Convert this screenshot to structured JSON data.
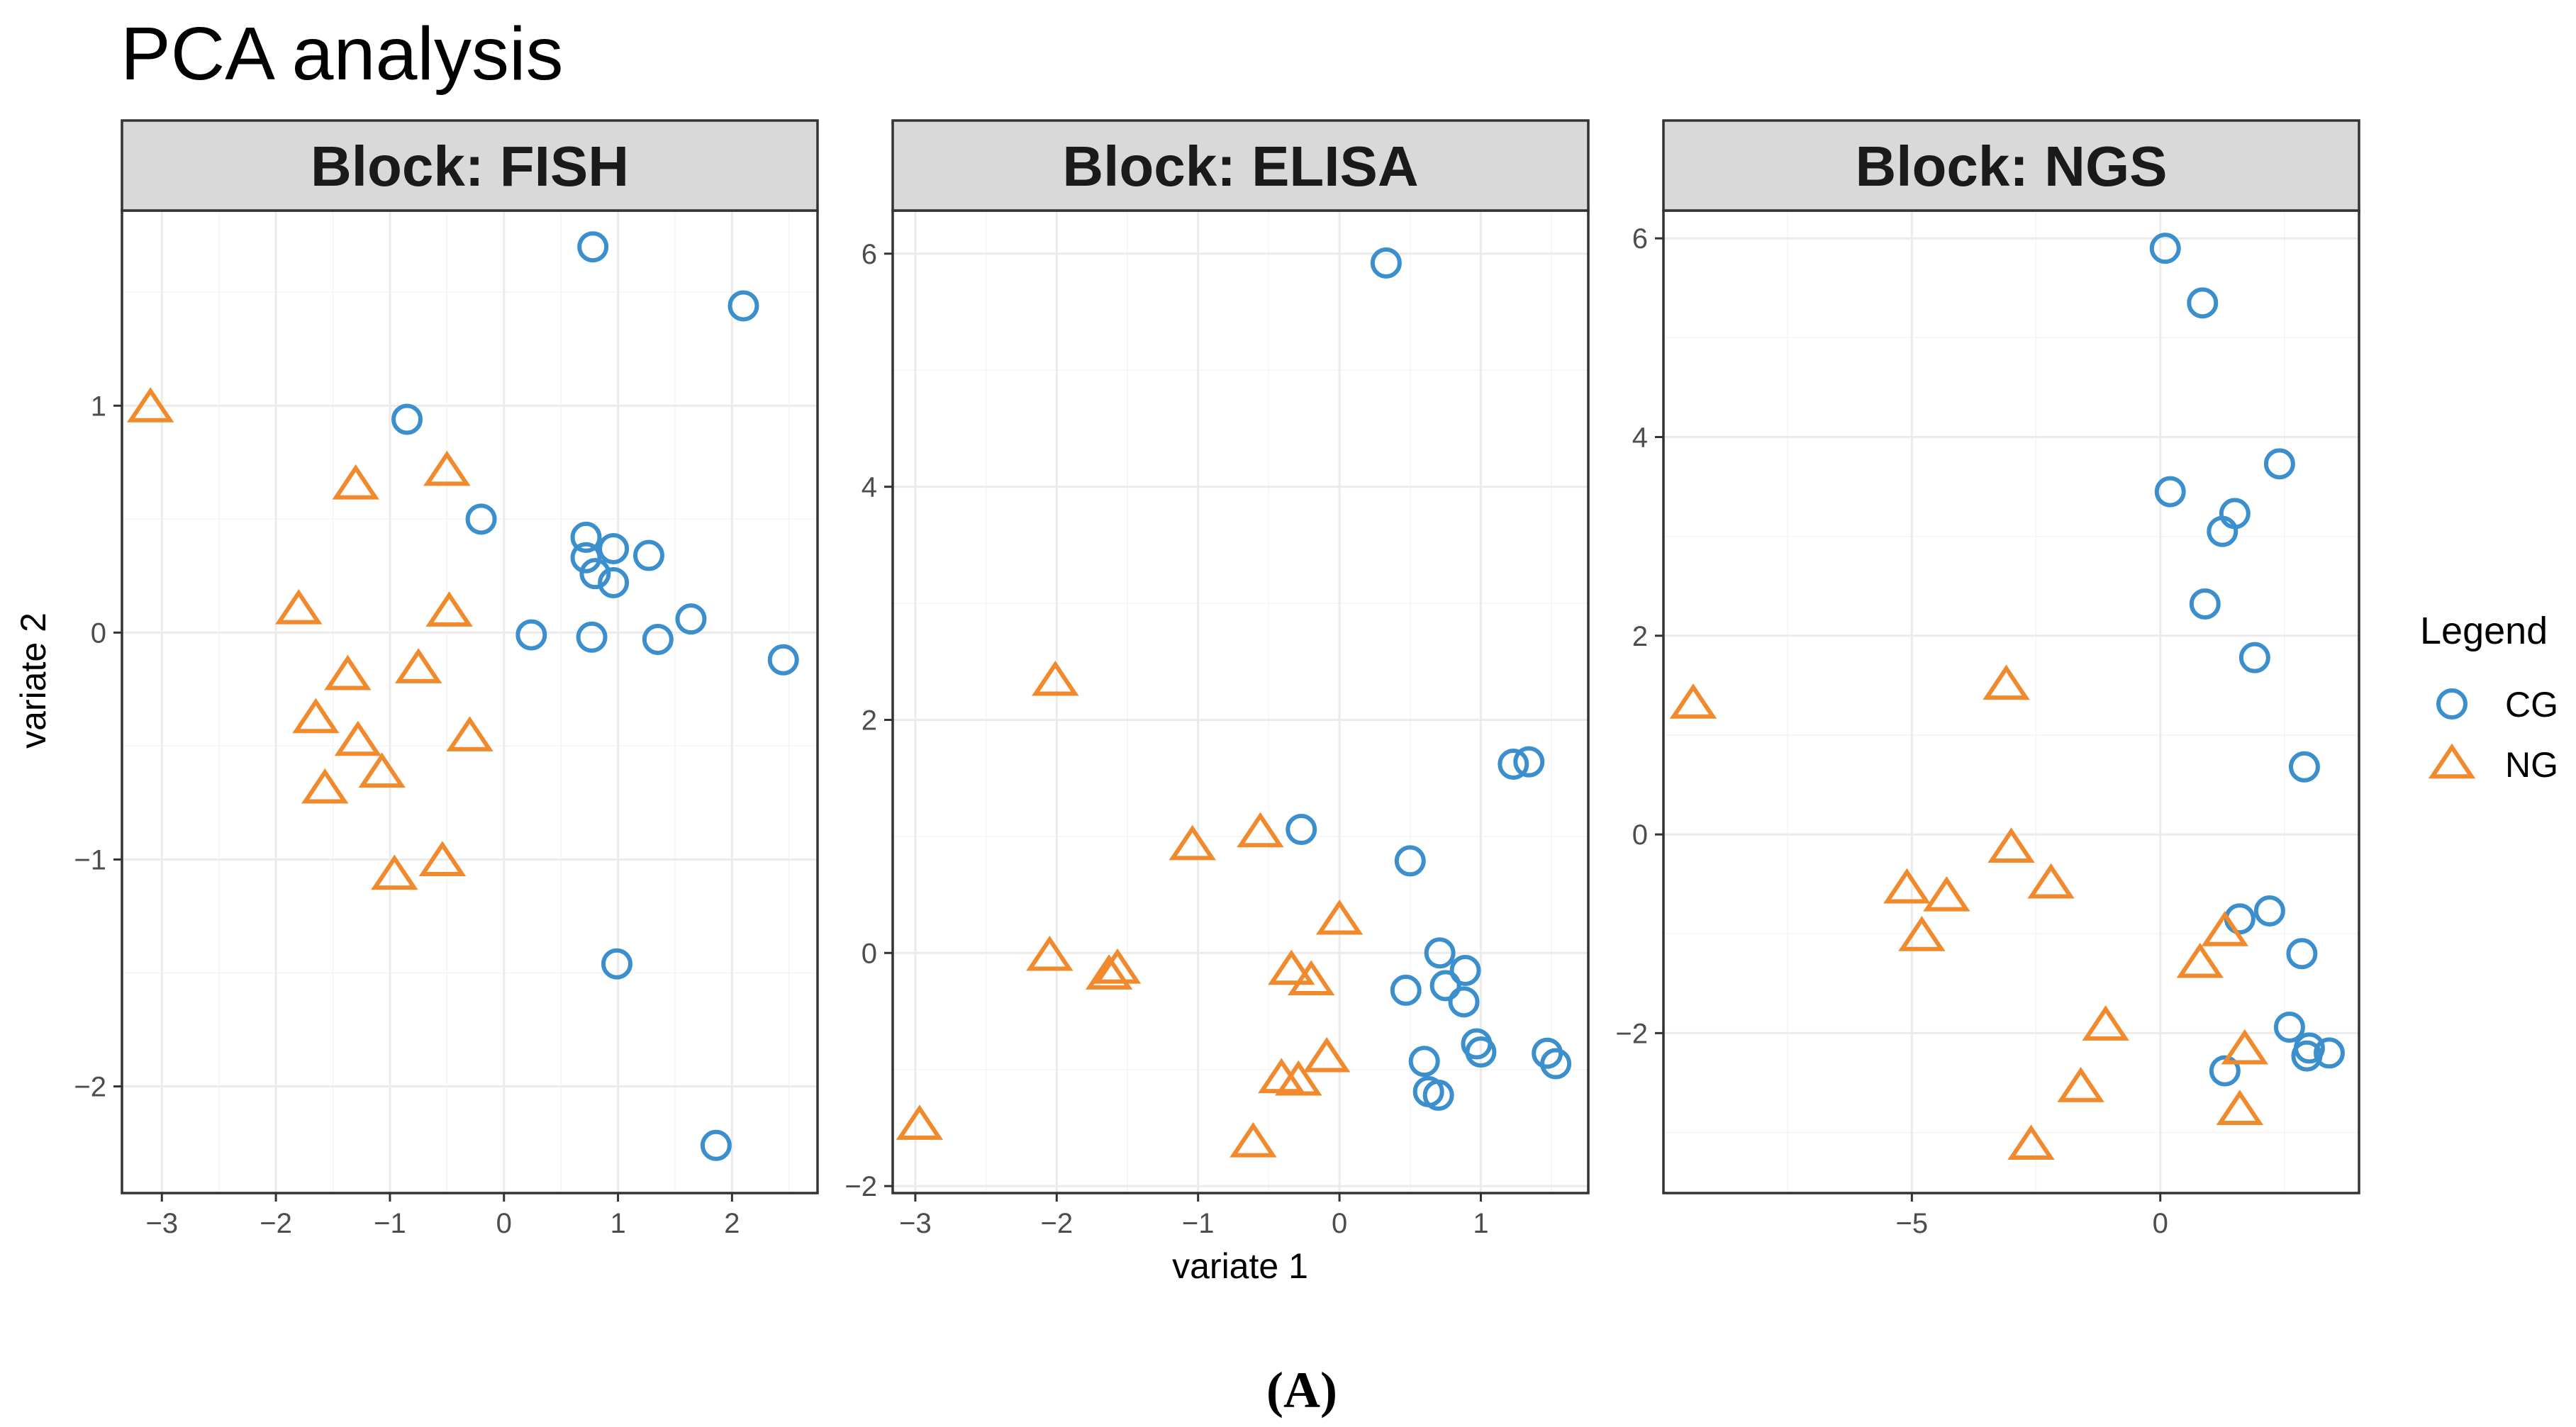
{
  "figure": {
    "title": "PCA analysis",
    "caption": "(A)"
  },
  "colors": {
    "CG": "#3a8fcc",
    "NG": "#f08a2c",
    "strip_bg": "#d9d9d9",
    "grid": "#ebebeb",
    "border": "#333333"
  },
  "legend": {
    "title": "Legend",
    "items": [
      {
        "label": "CG",
        "shape": "circle",
        "color": "#3a8fcc"
      },
      {
        "label": "NG",
        "shape": "triangle",
        "color": "#f08a2c"
      }
    ]
  },
  "chart_data": [
    {
      "type": "scatter",
      "title": "Block: FISH",
      "xlabel": "variate 1",
      "ylabel": "variate 2",
      "xlim": [
        -3.35,
        2.75
      ],
      "ylim": [
        -2.47,
        1.86
      ],
      "xticks": [
        -3,
        -2,
        -1,
        0,
        1,
        2
      ],
      "xtick_labels": [
        "−3",
        "−2",
        "−1",
        "0",
        "1",
        "2"
      ],
      "yticks": [
        -2,
        -1,
        0,
        1
      ],
      "ytick_labels": [
        "−2",
        "−1",
        "0",
        "1"
      ],
      "series": [
        {
          "name": "CG",
          "shape": "circle",
          "x": [
            0.78,
            2.1,
            -0.85,
            -0.2,
            0.72,
            0.96,
            1.27,
            0.72,
            0.8,
            0.96,
            0.24,
            0.77,
            1.35,
            1.64,
            2.45,
            0.99,
            1.86
          ],
          "y": [
            1.7,
            1.44,
            0.94,
            0.5,
            0.42,
            0.37,
            0.34,
            0.33,
            0.26,
            0.22,
            -0.01,
            -0.02,
            -0.03,
            0.06,
            -0.12,
            -1.46,
            -2.26
          ]
        },
        {
          "name": "NG",
          "shape": "triangle",
          "x": [
            -3.1,
            -1.3,
            -0.5,
            -1.8,
            -0.48,
            -1.37,
            -0.75,
            -1.65,
            -1.28,
            -1.07,
            -0.3,
            -1.57,
            -0.96,
            -0.54
          ],
          "y": [
            0.99,
            0.65,
            0.71,
            0.1,
            0.09,
            -0.19,
            -0.16,
            -0.38,
            -0.48,
            -0.62,
            -0.46,
            -0.69,
            -1.07,
            -1.01
          ]
        }
      ]
    },
    {
      "type": "scatter",
      "title": "Block: ELISA",
      "xlabel": "variate 1",
      "ylabel": "",
      "xlim": [
        -3.16,
        1.76
      ],
      "ylim": [
        -2.06,
        6.37
      ],
      "xticks": [
        -3,
        -2,
        -1,
        0,
        1
      ],
      "xtick_labels": [
        "−3",
        "−2",
        "−1",
        "0",
        "1"
      ],
      "yticks": [
        -2,
        0,
        2,
        4,
        6
      ],
      "ytick_labels": [
        "−2",
        "0",
        "2",
        "4",
        "6"
      ],
      "series": [
        {
          "name": "CG",
          "shape": "circle",
          "x": [
            0.33,
            -0.27,
            0.5,
            1.23,
            1.34,
            0.71,
            0.89,
            0.75,
            0.47,
            0.88,
            0.97,
            1.0,
            0.6,
            0.63,
            0.7,
            1.47,
            1.53
          ],
          "y": [
            5.92,
            1.06,
            0.79,
            1.62,
            1.64,
            0.0,
            -0.15,
            -0.28,
            -0.32,
            -0.42,
            -0.78,
            -0.85,
            -0.93,
            -1.19,
            -1.22,
            -0.86,
            -0.95
          ]
        },
        {
          "name": "NG",
          "shape": "triangle",
          "x": [
            -2.01,
            -1.04,
            -0.56,
            0.0,
            -2.05,
            -1.63,
            -1.57,
            -0.34,
            -0.2,
            -0.09,
            -0.41,
            -0.29,
            -0.61,
            -2.97
          ],
          "y": [
            2.33,
            0.92,
            1.03,
            0.28,
            -0.03,
            -0.19,
            -0.14,
            -0.15,
            -0.24,
            -0.9,
            -1.08,
            -1.1,
            -1.63,
            -1.48
          ]
        }
      ]
    },
    {
      "type": "scatter",
      "title": "Block: NGS",
      "xlabel": "",
      "ylabel": "",
      "xlim": [
        -10.0,
        4.0
      ],
      "ylim": [
        -3.61,
        6.28
      ],
      "xticks": [
        -5,
        0
      ],
      "xtick_labels": [
        "−5",
        "0"
      ],
      "yticks": [
        -2,
        0,
        2,
        4,
        6
      ],
      "ytick_labels": [
        "−2",
        "0",
        "2",
        "4",
        "6"
      ],
      "series": [
        {
          "name": "CG",
          "shape": "circle",
          "x": [
            0.1,
            0.2,
            2.4,
            1.5,
            1.25,
            0.9,
            1.9,
            2.9,
            2.2,
            1.6,
            2.85,
            2.6,
            3.0,
            3.4,
            2.95,
            1.3,
            0.85
          ],
          "y": [
            5.9,
            3.45,
            3.73,
            3.23,
            3.05,
            2.32,
            1.78,
            0.68,
            -0.77,
            -0.85,
            -1.2,
            -1.94,
            -2.15,
            -2.2,
            -2.23,
            -2.38,
            5.35
          ]
        },
        {
          "name": "NG",
          "shape": "triangle",
          "x": [
            -9.4,
            -3.1,
            -3.0,
            -2.2,
            -5.1,
            -4.3,
            -4.8,
            1.3,
            0.8,
            -1.1,
            1.7,
            -1.6,
            -2.6,
            1.6
          ],
          "y": [
            1.31,
            1.5,
            -0.14,
            -0.5,
            -0.55,
            -0.63,
            -1.03,
            -0.98,
            -1.3,
            -1.93,
            -2.17,
            -2.55,
            -3.13,
            -2.78
          ]
        }
      ]
    }
  ]
}
